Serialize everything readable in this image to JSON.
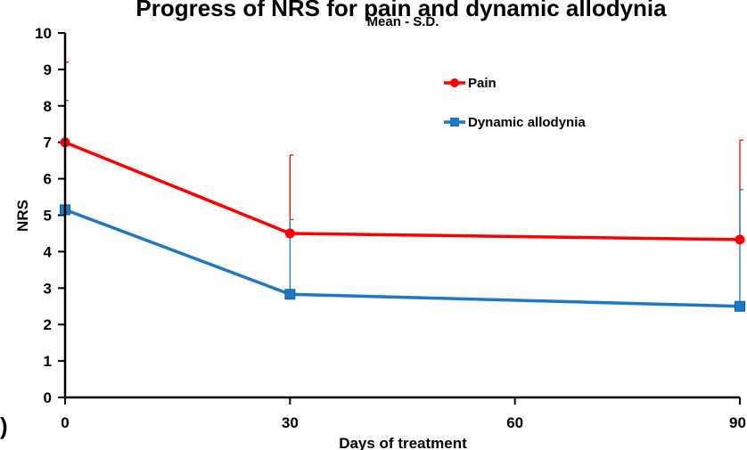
{
  "chart_data": {
    "type": "line",
    "title": "Progress of NRS for pain and dynamic allodynia",
    "subtitle": "Mean - S.D.",
    "panel_label": ")",
    "xlabel": "Days of treatment",
    "ylabel": "NRS",
    "x": [
      0,
      30,
      90
    ],
    "xlim": [
      0,
      90
    ],
    "ylim": [
      0,
      10
    ],
    "xticks": [
      0,
      30,
      60,
      90
    ],
    "yticks": [
      0,
      1,
      2,
      3,
      4,
      5,
      6,
      7,
      8,
      9,
      10
    ],
    "grid": false,
    "legend_position": "top-right",
    "series": [
      {
        "name": "Pain",
        "color": "#ff0000",
        "marker": "circle",
        "values": [
          7.0,
          4.5,
          4.33
        ],
        "sd": [
          2.2,
          2.15,
          2.73
        ]
      },
      {
        "name": "Dynamic allodynia",
        "color": "#1f77c8",
        "marker": "square",
        "values": [
          5.15,
          2.83,
          2.5
        ],
        "sd": [
          3.0,
          2.05,
          3.2
        ]
      }
    ]
  }
}
